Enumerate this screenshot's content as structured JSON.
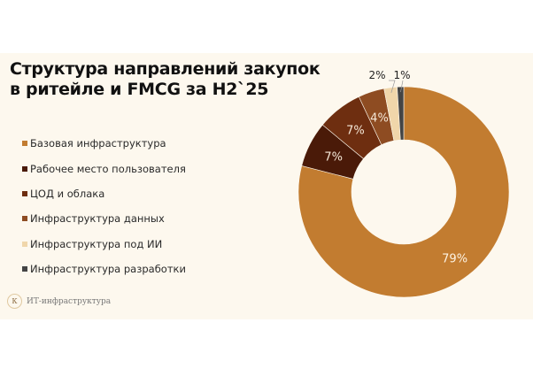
{
  "chart_data": {
    "type": "pie",
    "variant": "donut",
    "title": "Структура направлений закупок в ритейле и FMCG за H2`25",
    "title_lines": [
      "Структура направлений закупок",
      "в ритейле и FMCG за H2`25"
    ],
    "legend_position": "left",
    "slices": [
      {
        "label": "Базовая инфраструктура",
        "value": 79,
        "display": "79%",
        "color": "#c27c30",
        "label_color": "#fdf3e3"
      },
      {
        "label": "Рабочее место пользователя",
        "value": 7,
        "display": "7%",
        "color": "#4a1a08",
        "label_color": "#f5e8d8"
      },
      {
        "label": "ЦОД и облака",
        "value": 7,
        "display": "7%",
        "color": "#6e2e10",
        "label_color": "#f5e8d8"
      },
      {
        "label": "Инфраструктура данных",
        "value": 4,
        "display": "4%",
        "color": "#8e4c22",
        "label_color": "#f5e8d8"
      },
      {
        "label": "Инфраструктура под ИИ",
        "value": 2,
        "display": "2%",
        "color": "#f0d6aa",
        "label_color": "#222222",
        "outside": true
      },
      {
        "label": "Инфраструктура разработки",
        "value": 1,
        "display": "1%",
        "color": "#444444",
        "label_color": "#222222",
        "outside": true
      }
    ]
  },
  "footer": {
    "logo_letter": "К",
    "brand": "ИТ-инфраструктура"
  }
}
